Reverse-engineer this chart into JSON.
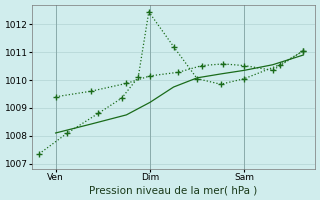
{
  "xlabel": "Pression niveau de la mer( hPa )",
  "ylim": [
    1006.8,
    1012.7
  ],
  "xlim": [
    0,
    12
  ],
  "yticks": [
    1007,
    1008,
    1009,
    1010,
    1011,
    1012
  ],
  "xtick_positions": [
    1.0,
    5.0,
    9.0
  ],
  "xtick_labels": [
    "Ven",
    "Dim",
    "Sam"
  ],
  "vlines": [
    1.0,
    5.0,
    9.0
  ],
  "background_color": "#d0eded",
  "grid_color": "#b8d8d8",
  "line_color": "#1a6b1a",
  "line1_x": [
    0.3,
    1.5,
    2.8,
    3.8,
    4.5,
    4.95,
    6.0,
    7.0,
    8.0,
    9.0,
    10.5,
    11.5
  ],
  "line1_y": [
    1007.35,
    1008.1,
    1008.8,
    1009.35,
    1010.1,
    1012.45,
    1011.2,
    1010.05,
    1009.85,
    1010.05,
    1010.55,
    1011.05
  ],
  "line2_x": [
    1.0,
    2.5,
    4.0,
    5.0,
    6.2,
    7.2,
    8.1,
    9.0,
    10.2,
    11.5
  ],
  "line2_y": [
    1009.4,
    1009.6,
    1009.88,
    1010.15,
    1010.28,
    1010.52,
    1010.58,
    1010.52,
    1010.35,
    1011.05
  ],
  "line3_x": [
    1.0,
    2.5,
    4.0,
    5.0,
    6.0,
    7.0,
    8.0,
    9.0,
    10.2,
    11.5
  ],
  "line3_y": [
    1008.1,
    1008.42,
    1008.75,
    1009.2,
    1009.75,
    1010.08,
    1010.22,
    1010.35,
    1010.55,
    1010.9
  ]
}
